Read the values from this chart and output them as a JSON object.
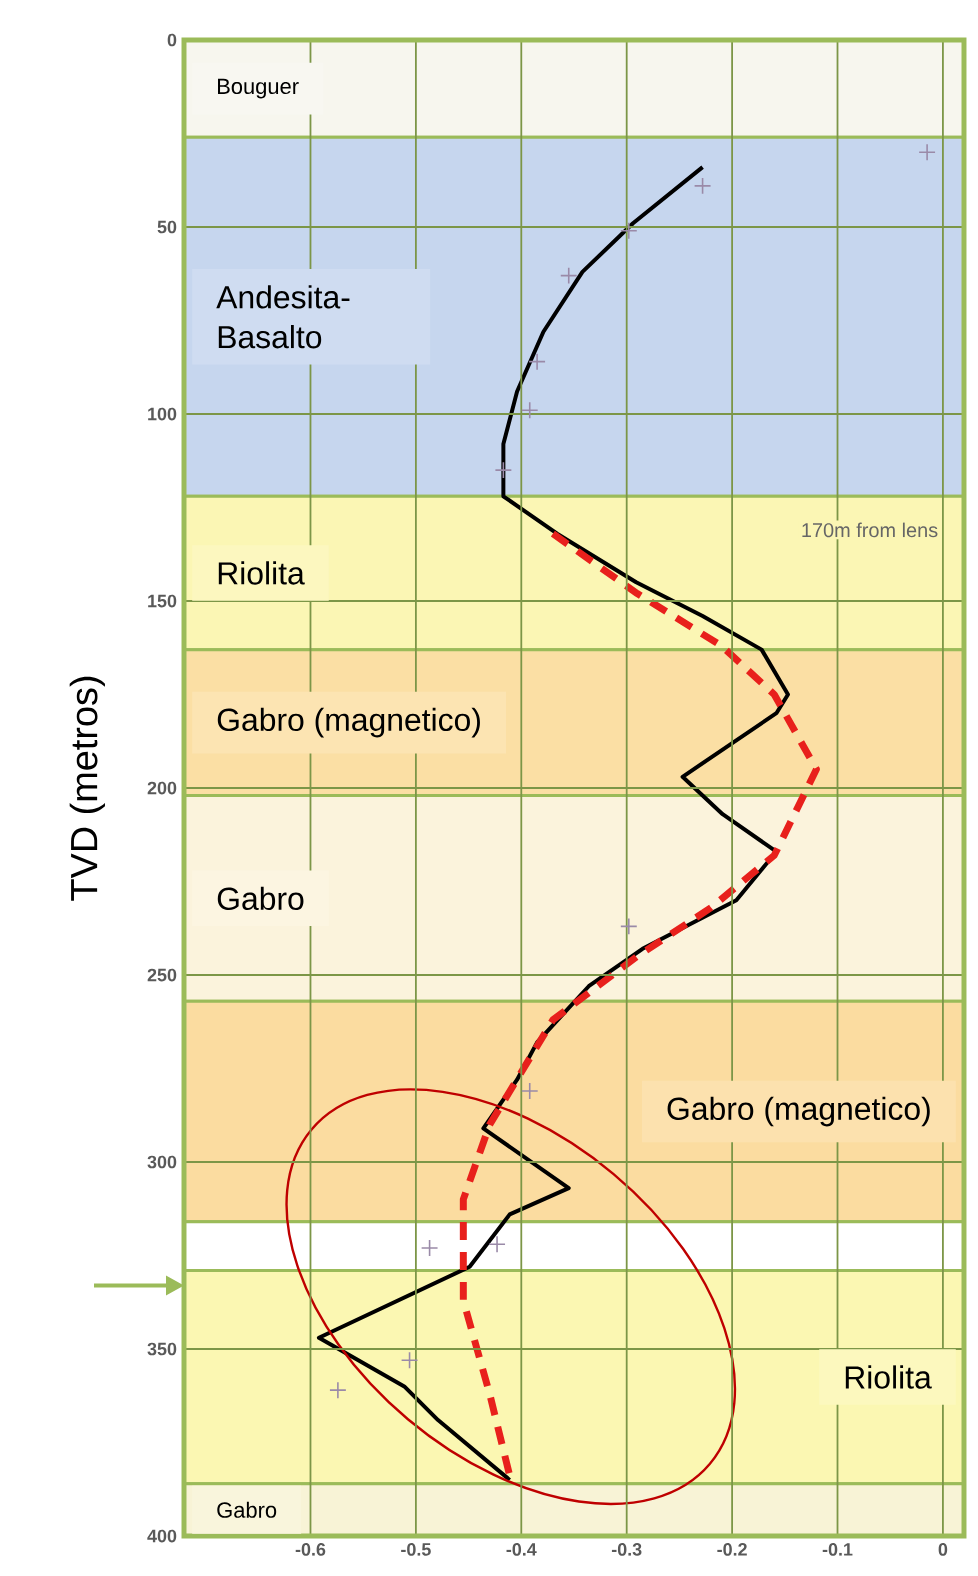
{
  "chart_data": {
    "type": "line",
    "ylabel": "TVD (metros)",
    "xlim": [
      -0.72,
      0.02
    ],
    "ylim": [
      400,
      0
    ],
    "xticks": [
      -0.6,
      -0.5,
      -0.4,
      -0.3,
      -0.2,
      -0.1,
      0
    ],
    "yticks": [
      0,
      50,
      100,
      150,
      200,
      250,
      300,
      350,
      400
    ],
    "grid": true,
    "series": [
      {
        "color": "#000000",
        "line_style": "solid",
        "marker": "none",
        "x": [
          -0.228,
          -0.294,
          -0.342,
          -0.379,
          -0.404,
          -0.417,
          -0.417,
          -0.366,
          -0.291,
          -0.228,
          -0.172,
          -0.147,
          -0.158,
          -0.247,
          -0.209,
          -0.158,
          -0.196,
          -0.285,
          -0.336,
          -0.385,
          -0.404,
          -0.436,
          -0.355,
          -0.411,
          -0.449,
          -0.592,
          -0.511,
          -0.479,
          -0.411
        ],
        "values": [
          34,
          49,
          62,
          78,
          94,
          108,
          122,
          132,
          145,
          154,
          163,
          175,
          180,
          197,
          207,
          217,
          230,
          243,
          253,
          268,
          278,
          291,
          307,
          314,
          328,
          347,
          360,
          369,
          385
        ]
      },
      {
        "color": "#e8201c",
        "line_style": "dashed",
        "marker": "none",
        "x": [
          -0.37,
          -0.29,
          -0.21,
          -0.16,
          -0.12,
          -0.16,
          -0.22,
          -0.29,
          -0.37,
          -0.43,
          -0.455,
          -0.455,
          -0.43,
          -0.41
        ],
        "values": [
          132,
          148,
          162,
          175,
          195,
          218,
          232,
          245,
          262,
          290,
          310,
          337,
          362,
          385
        ]
      },
      {
        "type": "scatter",
        "color": "#9a8aa8",
        "marker": "cross",
        "x": [
          -0.228,
          -0.298,
          -0.355,
          -0.385,
          -0.392,
          -0.417,
          -0.298,
          -0.392,
          -0.423,
          -0.487,
          -0.506,
          -0.574,
          -0.015
        ],
        "values": [
          39,
          51,
          63,
          86,
          99,
          115,
          237,
          281,
          322,
          323,
          353,
          361,
          30
        ]
      }
    ],
    "bands": [
      {
        "axis": "y",
        "from": 0,
        "to": 26,
        "label": "Bouguer",
        "color": "#f7f6ee"
      },
      {
        "axis": "y",
        "from": 26,
        "to": 122,
        "label": "Andesita-Basalto",
        "color": "#c6d6ee"
      },
      {
        "axis": "y",
        "from": 122,
        "to": 163,
        "label": "Riolita",
        "color": "#fbf6b4"
      },
      {
        "axis": "y",
        "from": 163,
        "to": 202,
        "label": "Gabro (magnetico)",
        "color": "#fbdfa4"
      },
      {
        "axis": "y",
        "from": 202,
        "to": 257,
        "label": "Gabro",
        "color": "#fbf3dc"
      },
      {
        "axis": "y",
        "from": 257,
        "to": 316,
        "label": "Gabro (magnetico)",
        "color": "#fbdca0"
      },
      {
        "axis": "y",
        "from": 316,
        "to": 329,
        "color": "#ffffff"
      },
      {
        "axis": "y",
        "from": 329,
        "to": 386,
        "label": "Riolita",
        "color": "#fbf7b2"
      },
      {
        "axis": "y",
        "from": 386,
        "to": 400,
        "label": "Gabro",
        "color": "#f8f3d6"
      }
    ],
    "annotations": [
      "170m from lens"
    ]
  }
}
